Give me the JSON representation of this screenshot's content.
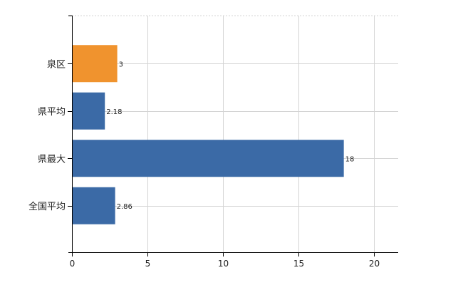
{
  "chart_data": {
    "type": "bar",
    "orientation": "horizontal",
    "categories": [
      "泉区",
      "県平均",
      "県最大",
      "全国平均"
    ],
    "values": [
      3,
      2.18,
      18,
      2.86
    ],
    "value_labels": [
      "3",
      "2.18",
      "18",
      "2.86"
    ],
    "bar_colors": [
      "#f0932e",
      "#3b6aa6",
      "#3b6aa6",
      "#3b6aa6"
    ],
    "xticks": [
      0,
      5,
      10,
      15,
      20
    ],
    "xtick_labels": [
      "0",
      "5",
      "10",
      "15",
      "20"
    ],
    "xlim": [
      0,
      21.6
    ],
    "title": "",
    "xlabel": "",
    "ylabel": "",
    "grid": true,
    "legend": "none"
  }
}
